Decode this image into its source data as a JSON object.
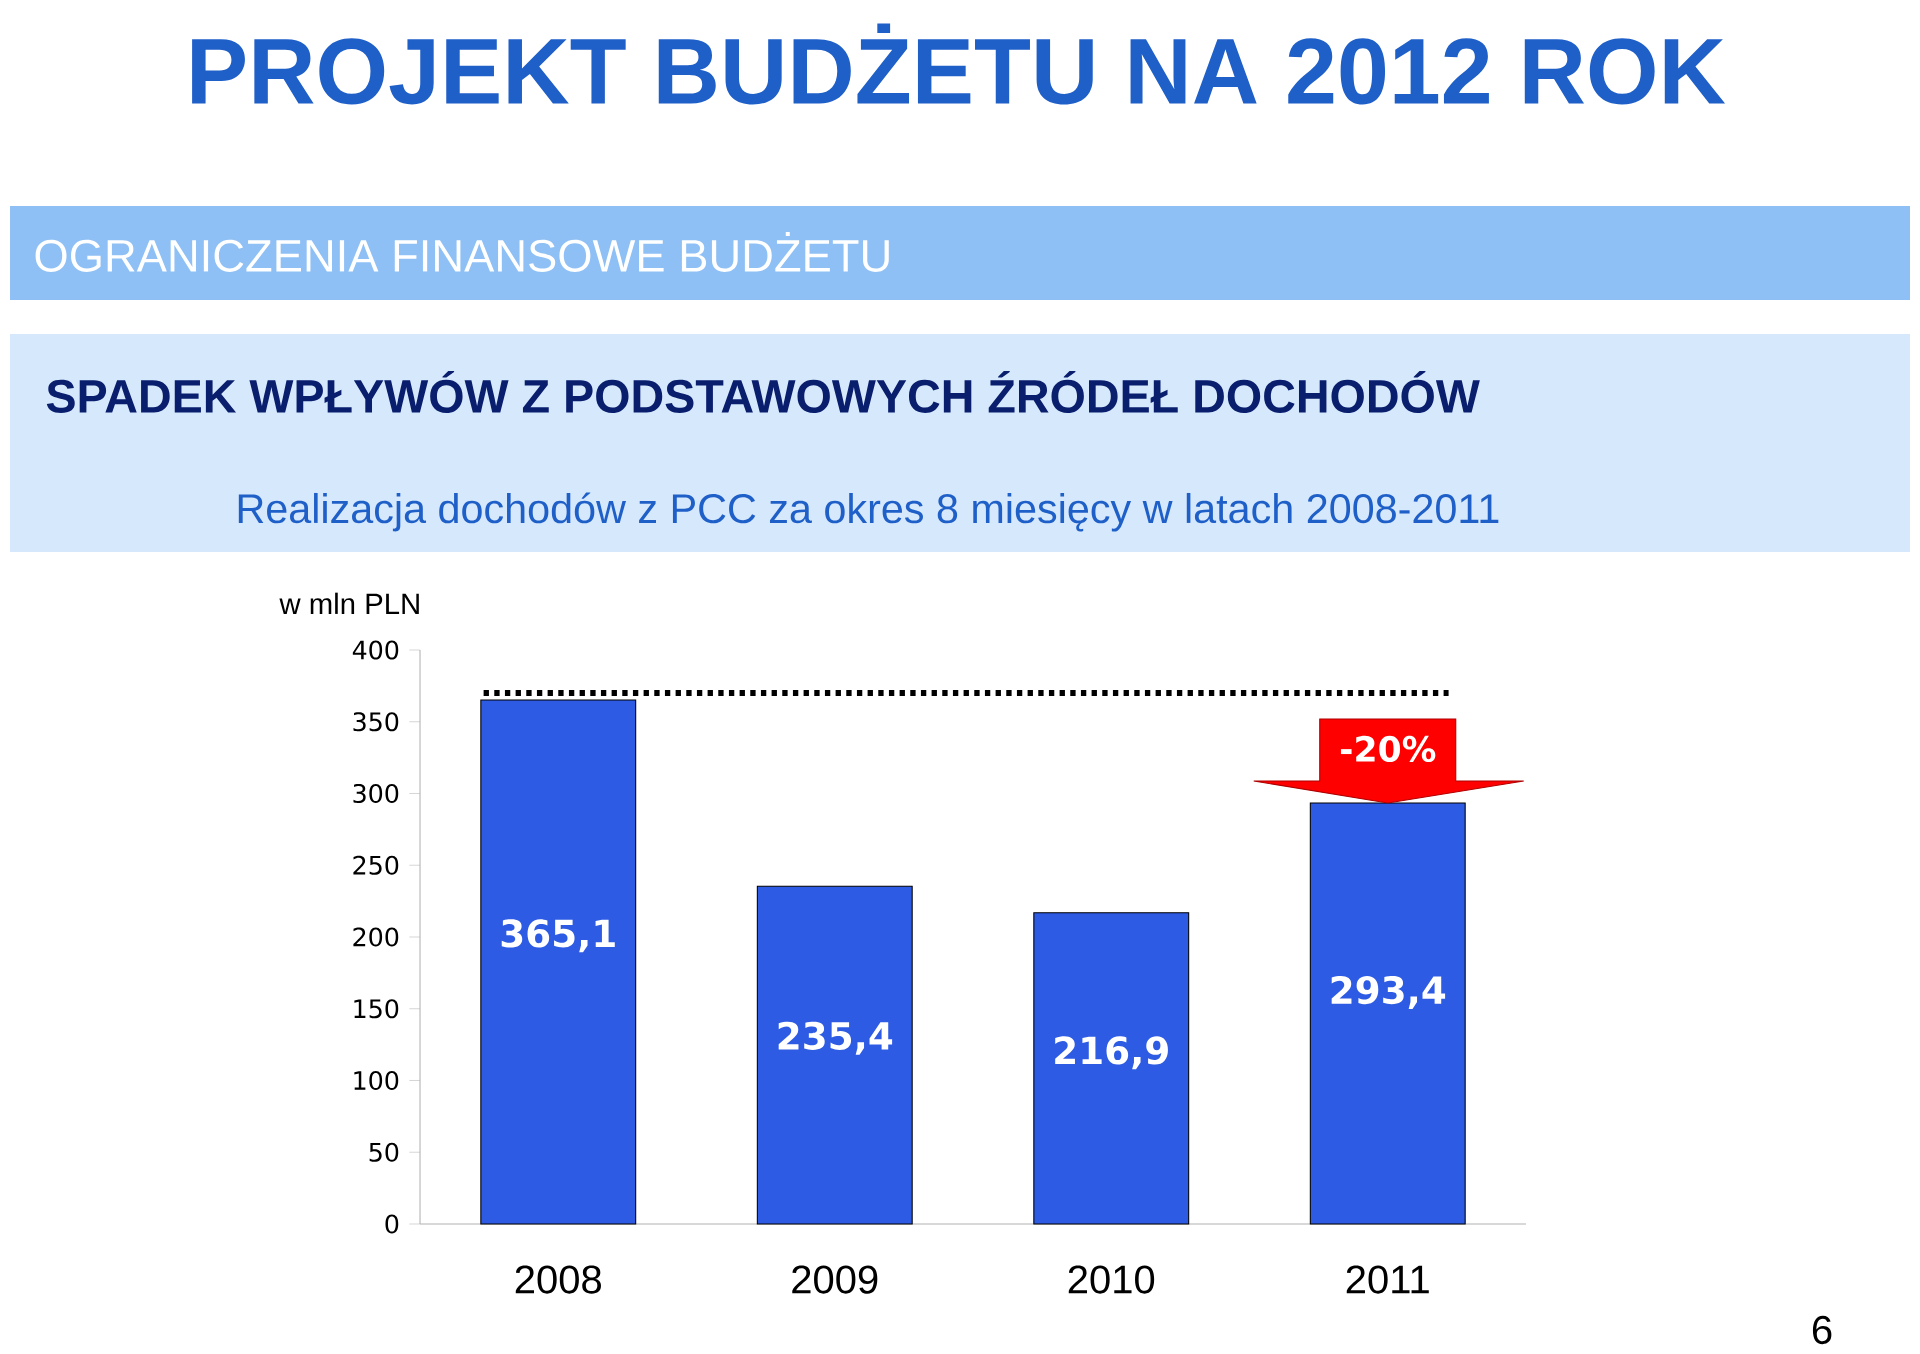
{
  "chart_data": {
    "type": "bar",
    "title": "PROJEKT BUDŻETU NA 2012 ROK",
    "subtitle": "OGRANICZENIA FINANSOWE BUDŻETU",
    "ylabel": "w mln PLN",
    "categories": [
      "2008",
      "2009",
      "2010",
      "2011"
    ],
    "values": [
      365.1,
      235.4,
      216.9,
      293.4
    ],
    "value_labels": [
      "365,1",
      "235,4",
      "216,9",
      "293,4"
    ],
    "color": "#2d5be3",
    "ylim": [
      0,
      400
    ],
    "yticks": [
      0,
      50,
      100,
      150,
      200,
      250,
      300,
      350,
      400
    ],
    "ref_lines": [
      {
        "axis": "y",
        "value": 370,
        "color": "#000000",
        "line_style": "dotted"
      }
    ],
    "annotations": [
      "SPADEK WPŁYWÓW Z PODSTAWOWYCH ŹRÓDEŁ DOCHODÓW",
      "Realizacja dochodów z PCC za okres 8 miesięcy w latach 2008-2011",
      {
        "text": "-20%",
        "x": "2011",
        "y": 293.4
      },
      "6"
    ]
  }
}
